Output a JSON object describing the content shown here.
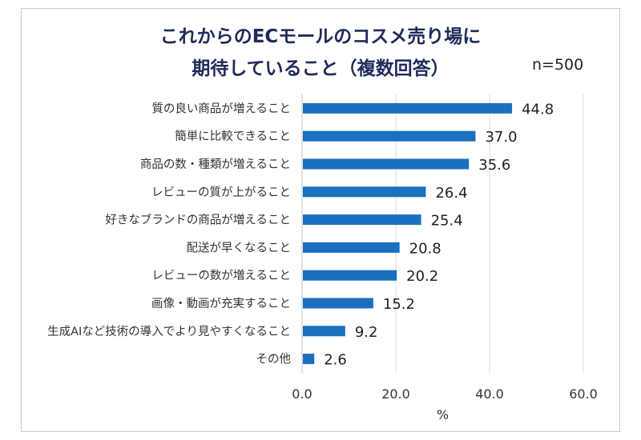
{
  "header": {
    "title_line1": "これからのECモールのコスメ売り場に",
    "title_line2": "期待していること（複数回答）",
    "sample_size": "n=500"
  },
  "chart_data": {
    "type": "bar",
    "orientation": "horizontal",
    "categories": [
      "質の良い商品が増えること",
      "簡単に比較できること",
      "商品の数・種類が増えること",
      "レビューの質が上がること",
      "好きなブランドの商品が増えること",
      "配送が早くなること",
      "レビューの数が増えること",
      "画像・動画が充実すること",
      "生成AIなど技術の導入でより見やすくなること",
      "その他"
    ],
    "values": [
      44.8,
      37.0,
      35.6,
      26.4,
      25.4,
      20.8,
      20.2,
      15.2,
      9.2,
      2.6
    ],
    "value_labels": [
      "44.8",
      "37.0",
      "35.6",
      "26.4",
      "25.4",
      "20.8",
      "20.2",
      "15.2",
      "9.2",
      "2.6"
    ],
    "xlim": [
      0,
      60
    ],
    "xticks": [
      0,
      20,
      40,
      60
    ],
    "xtick_labels": [
      "0.0",
      "20.0",
      "40.0",
      "60.0"
    ],
    "xlabel": "%",
    "grid": "vertical",
    "bar_color": "#1b6fc0",
    "grid_color": "#d9d9d9"
  }
}
